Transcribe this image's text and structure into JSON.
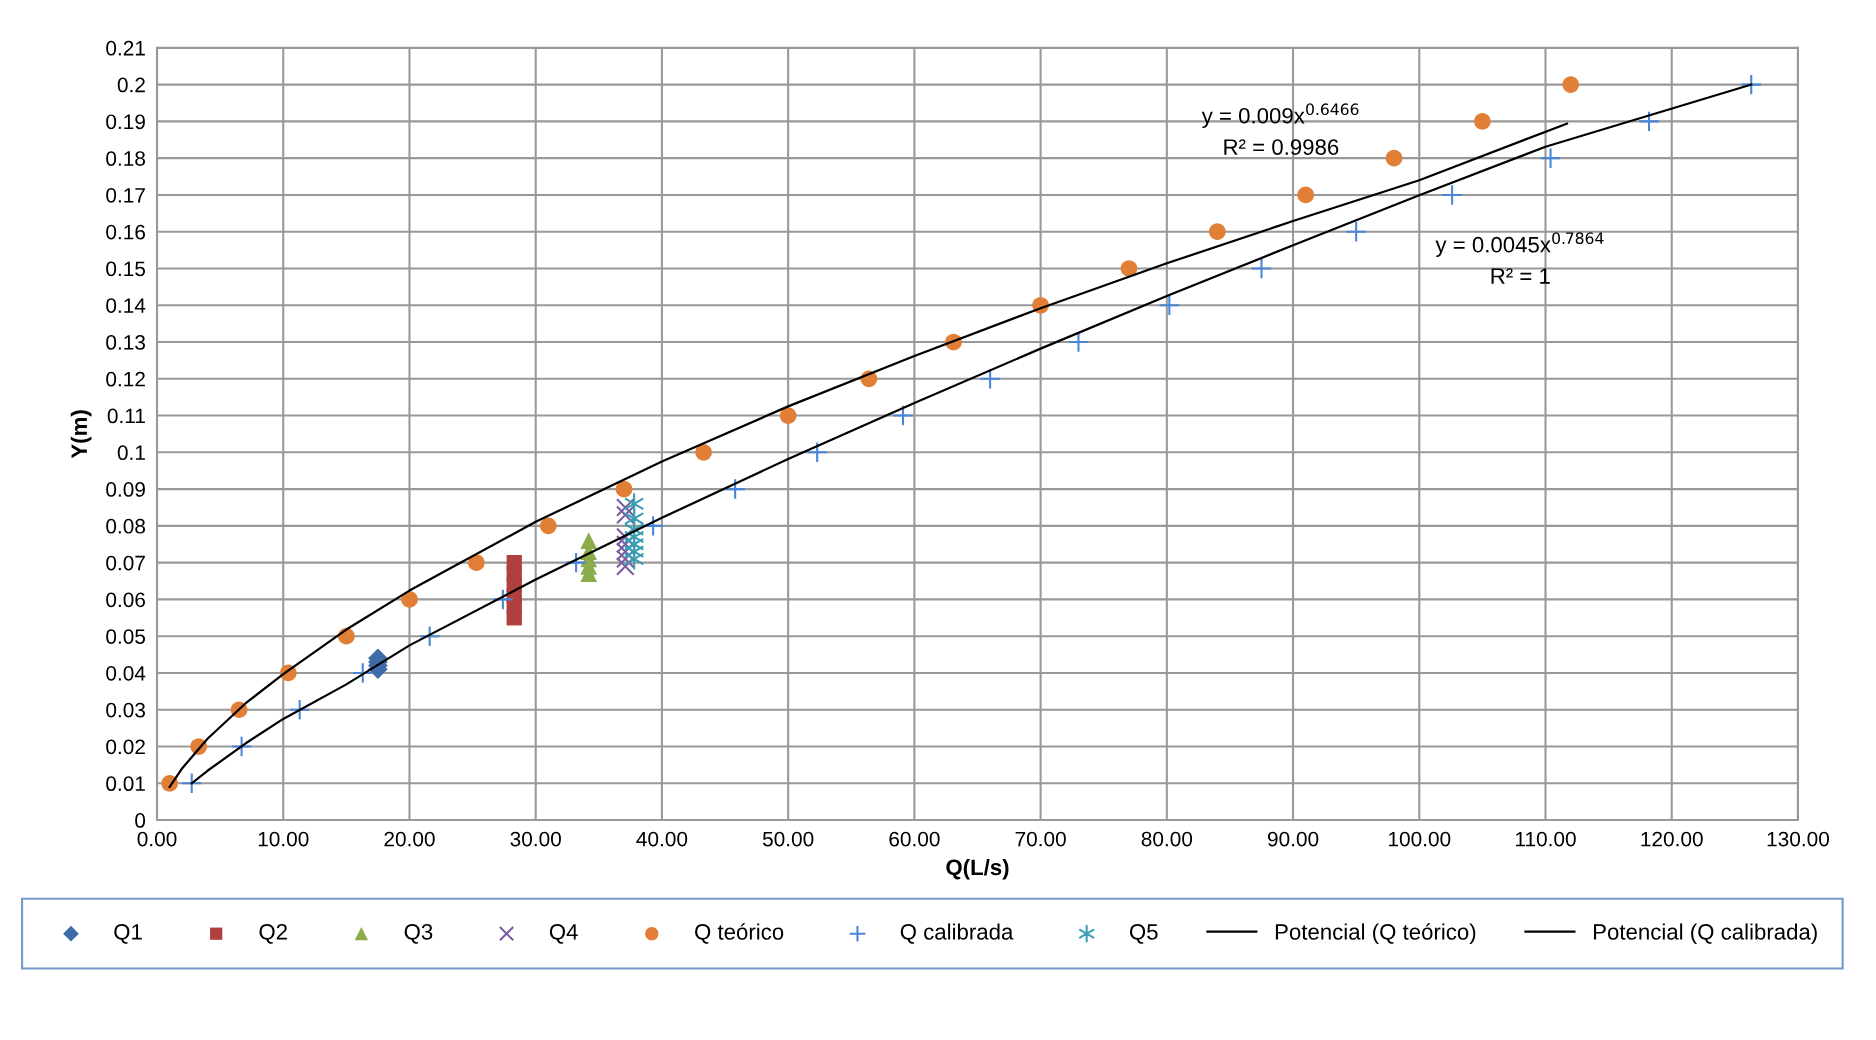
{
  "chart_data": {
    "type": "scatter",
    "xlabel": "Q(L/s)",
    "ylabel": "Y(m)",
    "xlim": [
      0,
      130
    ],
    "ylim": [
      0,
      0.21
    ],
    "xticks": [
      {
        "value": 0,
        "label": "0.00"
      },
      {
        "value": 10,
        "label": "10.00"
      },
      {
        "value": 20,
        "label": "20.00"
      },
      {
        "value": 30,
        "label": "30.00"
      },
      {
        "value": 40,
        "label": "40.00"
      },
      {
        "value": 50,
        "label": "50.00"
      },
      {
        "value": 60,
        "label": "60.00"
      },
      {
        "value": 70,
        "label": "70.00"
      },
      {
        "value": 80,
        "label": "80.00"
      },
      {
        "value": 90,
        "label": "90.00"
      },
      {
        "value": 100,
        "label": "100.00"
      },
      {
        "value": 110,
        "label": "110.00"
      },
      {
        "value": 120,
        "label": "120.00"
      },
      {
        "value": 130,
        "label": "130.00"
      }
    ],
    "yticks": [
      0,
      0.01,
      0.02,
      0.03,
      0.04,
      0.05,
      0.06,
      0.07,
      0.08,
      0.09,
      0.1,
      0.11,
      0.12,
      0.13,
      0.14,
      0.15,
      0.16,
      0.17,
      0.18,
      0.19,
      0.2,
      0.21
    ],
    "grid": true,
    "legend": "bottom",
    "series": [
      {
        "name": "Q1",
        "color": "#3f6ca8",
        "marker": "diamond",
        "x": [
          17.5,
          17.5,
          17.5,
          17.5
        ],
        "values": [
          0.041,
          0.042,
          0.043,
          0.044
        ]
      },
      {
        "name": "Q2",
        "color": "#b0403d",
        "marker": "square",
        "x": [
          28.3,
          28.3,
          28.3,
          28.3,
          28.3,
          28.3
        ],
        "values": [
          0.055,
          0.058,
          0.061,
          0.064,
          0.067,
          0.07
        ]
      },
      {
        "name": "Q3",
        "color": "#8aac4a",
        "marker": "triangle",
        "x": [
          34.2,
          34.2,
          34.2,
          34.2,
          34.2
        ],
        "values": [
          0.067,
          0.069,
          0.071,
          0.073,
          0.076
        ]
      },
      {
        "name": "Q4",
        "color": "#7a5ea0",
        "marker": "cross",
        "x": [
          37.1,
          37.1,
          37.1,
          37.1,
          37.1,
          37.1,
          37.1
        ],
        "values": [
          0.069,
          0.071,
          0.073,
          0.075,
          0.077,
          0.083,
          0.085
        ]
      },
      {
        "name": "Q teórico",
        "color": "#e07f35",
        "marker": "circle",
        "x": [
          1.0,
          3.3,
          6.5,
          10.4,
          15.0,
          20.0,
          25.3,
          31.0,
          37.0,
          43.3,
          50.0,
          56.4,
          63.1,
          70.0,
          77.0,
          84.0,
          91.0,
          98.0,
          105.0,
          112.0
        ],
        "values": [
          0.01,
          0.02,
          0.03,
          0.04,
          0.05,
          0.06,
          0.07,
          0.08,
          0.09,
          0.1,
          0.11,
          0.12,
          0.13,
          0.14,
          0.15,
          0.16,
          0.17,
          0.18,
          0.19,
          0.2
        ]
      },
      {
        "name": "Q calibrada",
        "color": "#4a86d8",
        "marker": "plus",
        "x": [
          2.75,
          6.7,
          11.3,
          16.3,
          21.6,
          27.4,
          33.2,
          39.3,
          45.8,
          52.3,
          59.1,
          66.0,
          73.0,
          80.2,
          87.5,
          95.0,
          102.6,
          110.4,
          118.2,
          126.3
        ],
        "values": [
          0.01,
          0.02,
          0.03,
          0.04,
          0.05,
          0.06,
          0.07,
          0.08,
          0.09,
          0.1,
          0.11,
          0.12,
          0.13,
          0.14,
          0.15,
          0.16,
          0.17,
          0.18,
          0.19,
          0.2
        ]
      },
      {
        "name": "Q5",
        "color": "#3a9fb5",
        "x": [
          37.8,
          37.8,
          37.8,
          37.8,
          37.8,
          37.8,
          37.8
        ],
        "values": [
          0.071,
          0.073,
          0.075,
          0.077,
          0.079,
          0.082,
          0.086
        ]
      },
      {
        "name": "Potencial (Q teórico)",
        "type": "line",
        "color": "#000000",
        "marker": "none",
        "line_style": "solid",
        "x": [
          1.0,
          2,
          4,
          7,
          10,
          15,
          20,
          30,
          40,
          50,
          60,
          70,
          80,
          90,
          100,
          111.7
        ],
        "values": [
          0.009,
          0.0141,
          0.0221,
          0.0317,
          0.0397,
          0.0518,
          0.0624,
          0.0811,
          0.0975,
          0.1125,
          0.1262,
          0.1392,
          0.1514,
          0.1629,
          0.174,
          0.1894
        ]
      },
      {
        "name": "Potencial (Q calibrada)",
        "type": "line",
        "color": "#000000",
        "marker": "none",
        "line_style": "solid",
        "x": [
          2.75,
          4,
          7,
          10,
          15,
          20,
          30,
          40,
          50,
          60,
          70,
          80,
          90,
          100,
          110,
          126.3
        ],
        "values": [
          0.01,
          0.0134,
          0.0208,
          0.0275,
          0.0369,
          0.0475,
          0.0654,
          0.0822,
          0.0982,
          0.1134,
          0.1282,
          0.1425,
          0.1563,
          0.1699,
          0.1831,
          0.2
        ]
      }
    ],
    "annotations": [
      "y = 0.009x$^{0.6466}$",
      "R² = 0.9986",
      "y = 0.0045x$^{0.7864}$",
      "R² = 1"
    ]
  }
}
